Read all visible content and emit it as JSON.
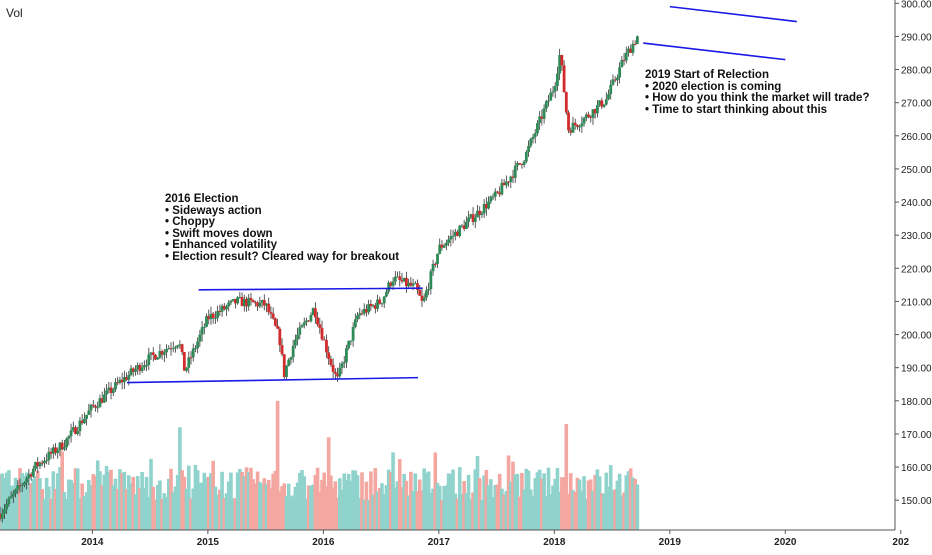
{
  "header": {
    "volume_label": "Vol"
  },
  "annotations": {
    "election_2016": {
      "title": "2016 Election",
      "bullets": [
        "• Sideways action",
        "• Choppy",
        "• Swift moves down",
        "• Enhanced volatility",
        "• Election result? Cleared way for breakout"
      ]
    },
    "reelection_2019": {
      "title": "2019 Start of Relection",
      "bullets": [
        "• 2020 election is coming",
        "• How do you think the market will trade?",
        "• Time to start thinking about this"
      ]
    }
  },
  "colors": {
    "up_candle": "#2e8b57",
    "down_candle": "#d22b2b",
    "wick": "#333333",
    "volume_up": "#8fd3cc",
    "volume_down": "#f4a6a0",
    "trendline": "#1a1ae6",
    "axis": "#555555"
  },
  "chart_data": {
    "type": "candlestick",
    "x_axis": {
      "tick_labels": [
        "2014",
        "2015",
        "2016",
        "2017",
        "2018",
        "2019",
        "2020",
        "202"
      ],
      "range": [
        2013.2,
        2020.95
      ]
    },
    "y_axis": {
      "position": "right",
      "tick_labels": [
        "150.00",
        "160.00",
        "170.00",
        "180.00",
        "190.00",
        "200.00",
        "210.00",
        "220.00",
        "230.00",
        "240.00",
        "250.00",
        "260.00",
        "270.00",
        "280.00",
        "290.00",
        "300.00"
      ],
      "range": [
        141,
        301
      ]
    },
    "price_path": [
      [
        2013.2,
        146
      ],
      [
        2013.5,
        160
      ],
      [
        2013.75,
        167
      ],
      [
        2014.0,
        178
      ],
      [
        2014.25,
        186
      ],
      [
        2014.5,
        193
      ],
      [
        2014.75,
        198
      ],
      [
        2014.8,
        189
      ],
      [
        2015.0,
        205
      ],
      [
        2015.25,
        210
      ],
      [
        2015.5,
        209
      ],
      [
        2015.62,
        199
      ],
      [
        2015.66,
        188
      ],
      [
        2015.75,
        198
      ],
      [
        2015.92,
        208
      ],
      [
        2016.05,
        193
      ],
      [
        2016.12,
        186
      ],
      [
        2016.3,
        206
      ],
      [
        2016.5,
        210
      ],
      [
        2016.6,
        217
      ],
      [
        2016.8,
        214
      ],
      [
        2016.86,
        209
      ],
      [
        2017.0,
        226
      ],
      [
        2017.25,
        234
      ],
      [
        2017.5,
        242
      ],
      [
        2017.75,
        254
      ],
      [
        2018.0,
        275
      ],
      [
        2018.05,
        285
      ],
      [
        2018.12,
        262
      ],
      [
        2018.25,
        265
      ],
      [
        2018.45,
        271
      ],
      [
        2018.6,
        283
      ],
      [
        2018.72,
        290
      ]
    ],
    "volume_spikes": [
      [
        2014.75,
        172
      ],
      [
        2015.6,
        180
      ],
      [
        2016.04,
        169
      ],
      [
        2018.1,
        173
      ]
    ],
    "trendlines": [
      {
        "from": [
          2014.92,
          213.5
        ],
        "to": [
          2016.86,
          214
        ]
      },
      {
        "from": [
          2014.3,
          185.5
        ],
        "to": [
          2016.82,
          187
        ]
      },
      {
        "from": [
          2018.77,
          288
        ],
        "to": [
          2020.0,
          283
        ]
      },
      {
        "from": [
          2019.0,
          299
        ],
        "to": [
          2020.1,
          294.5
        ]
      }
    ]
  }
}
